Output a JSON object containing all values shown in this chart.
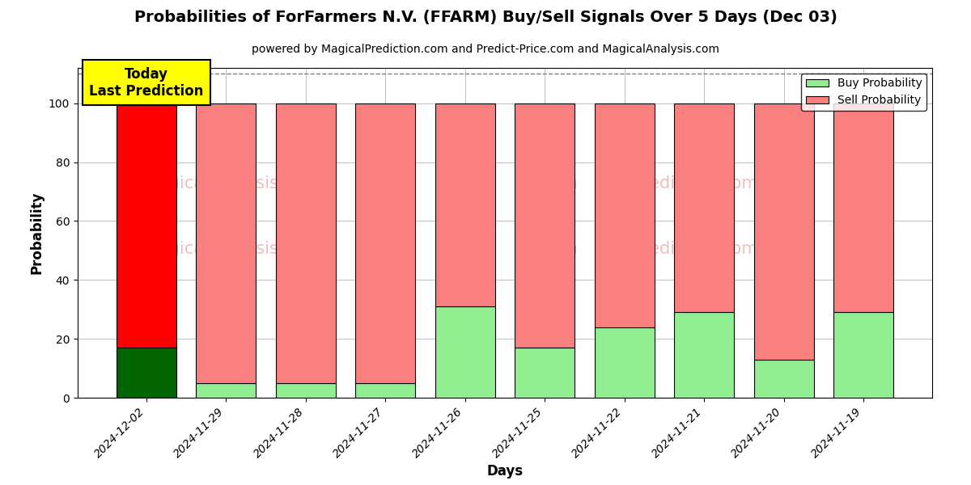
{
  "title": "Probabilities of ForFarmers N.V. (FFARM) Buy/Sell Signals Over 5 Days (Dec 03)",
  "subtitle": "powered by MagicalPrediction.com and Predict-Price.com and MagicalAnalysis.com",
  "xlabel": "Days",
  "ylabel": "Probability",
  "categories": [
    "2024-12-02",
    "2024-11-29",
    "2024-11-28",
    "2024-11-27",
    "2024-11-26",
    "2024-11-25",
    "2024-11-22",
    "2024-11-21",
    "2024-11-20",
    "2024-11-19"
  ],
  "buy_values": [
    17,
    5,
    5,
    5,
    31,
    17,
    24,
    29,
    13,
    29
  ],
  "sell_values": [
    83,
    95,
    95,
    95,
    69,
    83,
    76,
    71,
    87,
    71
  ],
  "today_buy_color": "#006400",
  "today_sell_color": "#ff0000",
  "other_buy_color": "#90EE90",
  "other_sell_color": "#FA8080",
  "today_label": "Today\nLast Prediction",
  "today_label_bg": "#ffff00",
  "legend_buy_label": "Buy Probability",
  "legend_sell_label": "Sell Probability",
  "ylim_max": 112,
  "yticks": [
    0,
    20,
    40,
    60,
    80,
    100
  ],
  "dashed_line_y": 110,
  "figsize": [
    12.0,
    6.0
  ],
  "dpi": 100,
  "bar_width": 0.75
}
